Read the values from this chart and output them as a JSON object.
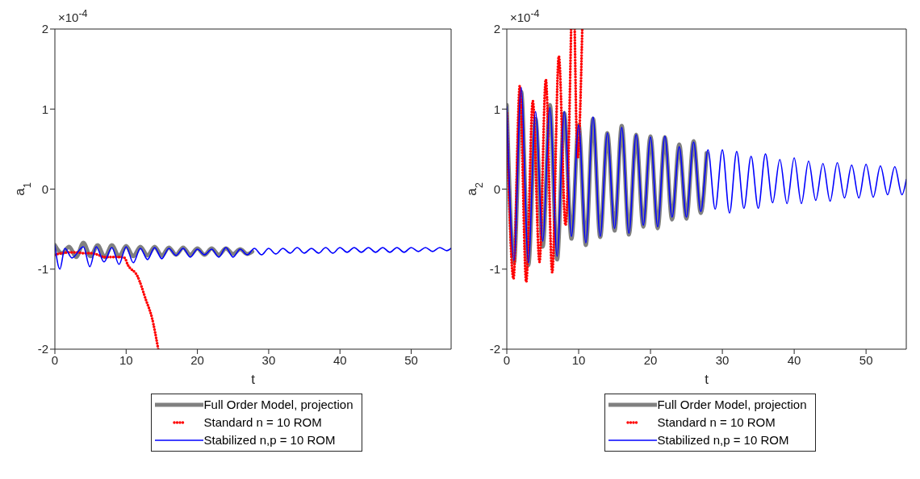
{
  "chart_data": [
    {
      "type": "line",
      "xlabel": "t",
      "ylabel": "a$_{1}$",
      "annotations": [
        "×10$^{-4}$"
      ],
      "xlim": [
        0,
        55.6
      ],
      "ylim": [
        -2,
        2
      ],
      "xticks": [
        0,
        10,
        20,
        30,
        40,
        50
      ],
      "yticks": [
        -2,
        -1,
        0,
        1,
        2
      ],
      "legend": "bottom",
      "series": [
        {
          "name": "Full Order Model, projection",
          "color": "#808080",
          "line_style": "solid",
          "x": [
            0,
            1,
            2,
            3,
            4,
            5,
            6,
            7,
            8,
            9,
            10,
            11,
            12,
            13,
            14,
            15,
            16,
            17,
            18,
            19,
            20,
            21,
            22,
            23,
            24,
            25,
            26,
            27,
            27.7
          ],
          "values": [
            -0.7,
            -0.8,
            -0.72,
            -0.85,
            -0.67,
            -0.84,
            -0.7,
            -0.85,
            -0.7,
            -0.84,
            -0.71,
            -0.84,
            -0.72,
            -0.83,
            -0.72,
            -0.83,
            -0.73,
            -0.82,
            -0.73,
            -0.82,
            -0.74,
            -0.82,
            -0.74,
            -0.82,
            -0.74,
            -0.81,
            -0.75,
            -0.81,
            -0.78
          ]
        },
        {
          "name": "Standard n = 10 ROM",
          "color": "#ff0000",
          "line_style": "dotted",
          "x": [
            0,
            1,
            2,
            3,
            4,
            5,
            6,
            7,
            8,
            9,
            9.8,
            10.2,
            11.6,
            12.8,
            13.6,
            14.5
          ],
          "values": [
            -0.82,
            -0.8,
            -0.79,
            -0.79,
            -0.8,
            -0.8,
            -0.82,
            -0.85,
            -0.85,
            -0.85,
            -0.86,
            -0.94,
            -1.09,
            -1.39,
            -1.6,
            -2.0
          ]
        },
        {
          "name": "Stabilized n,p = 10 ROM",
          "color": "#0000ff",
          "line_style": "solid",
          "x": [
            0,
            0.7,
            1.4,
            2.4,
            4,
            4.9,
            5.8,
            6.9,
            8,
            9,
            10,
            11,
            12,
            13,
            14,
            15,
            16,
            17,
            18,
            19,
            20,
            21,
            22,
            23,
            24,
            25,
            26,
            27,
            28,
            29,
            30,
            31,
            32,
            33,
            34,
            35,
            36,
            37,
            38,
            39,
            40,
            41,
            42,
            43,
            44,
            45,
            46,
            47,
            48,
            49,
            50,
            51,
            52,
            53,
            54,
            55,
            55.6
          ],
          "values": [
            -0.7,
            -1.0,
            -0.74,
            -0.86,
            -0.72,
            -0.97,
            -0.72,
            -0.91,
            -0.73,
            -0.94,
            -0.72,
            -0.92,
            -0.74,
            -0.88,
            -0.73,
            -0.87,
            -0.74,
            -0.83,
            -0.74,
            -0.85,
            -0.75,
            -0.82,
            -0.75,
            -0.85,
            -0.73,
            -0.85,
            -0.75,
            -0.82,
            -0.74,
            -0.82,
            -0.74,
            -0.81,
            -0.74,
            -0.8,
            -0.73,
            -0.8,
            -0.74,
            -0.8,
            -0.73,
            -0.8,
            -0.73,
            -0.79,
            -0.73,
            -0.79,
            -0.73,
            -0.79,
            -0.73,
            -0.79,
            -0.73,
            -0.79,
            -0.73,
            -0.78,
            -0.73,
            -0.78,
            -0.73,
            -0.77,
            -0.74
          ]
        }
      ]
    },
    {
      "type": "line",
      "xlabel": "t",
      "ylabel": "a$_{2}$",
      "annotations": [
        "×10$^{-4}$"
      ],
      "xlim": [
        0,
        55.6
      ],
      "ylim": [
        -2,
        2
      ],
      "xticks": [
        0,
        10,
        20,
        30,
        40,
        50
      ],
      "yticks": [
        -2,
        -1,
        0,
        1,
        2
      ],
      "legend": "bottom",
      "series": [
        {
          "name": "Full Order Model, projection",
          "color": "#808080",
          "line_style": "solid",
          "x": [
            0,
            1,
            2,
            3,
            4,
            5,
            6,
            7,
            8,
            9,
            10,
            11,
            12,
            13,
            14,
            15,
            16,
            17,
            18,
            19,
            20,
            21,
            22,
            23,
            24,
            25,
            26,
            27,
            27.8
          ],
          "values": [
            1.05,
            -0.92,
            1.22,
            -0.95,
            0.88,
            -0.72,
            1.05,
            -0.88,
            0.95,
            -0.62,
            0.8,
            -0.7,
            0.88,
            -0.6,
            0.7,
            -0.52,
            0.79,
            -0.57,
            0.68,
            -0.47,
            0.66,
            -0.49,
            0.65,
            -0.38,
            0.56,
            -0.37,
            0.6,
            -0.3,
            0.45
          ]
        },
        {
          "name": "Standard n = 10 ROM",
          "color": "#ff0000",
          "line_style": "dotted",
          "x": [
            0,
            0.93,
            1.81,
            2.7,
            3.62,
            4.55,
            5.43,
            6.32,
            7.24,
            8.17,
            8.95,
            9.2,
            9.45,
            9.86,
            10.5
          ],
          "values": [
            0.95,
            -1.12,
            1.29,
            -1.16,
            1.1,
            -0.91,
            1.37,
            -1.04,
            1.66,
            -0.45,
            2.0,
            null,
            2.0,
            0.39,
            2.0
          ]
        },
        {
          "name": "Stabilized n,p = 10 ROM",
          "color": "#0000ff",
          "line_style": "solid",
          "x": [
            0,
            1,
            2,
            3,
            4,
            5,
            6,
            7,
            8,
            9,
            10,
            11,
            12,
            13,
            14,
            15,
            16,
            17,
            18,
            19,
            20,
            21,
            22,
            23,
            24,
            25,
            26,
            27,
            28,
            29,
            30,
            31,
            32,
            33,
            34,
            35,
            36,
            37,
            38,
            39,
            40,
            41,
            42,
            43,
            44,
            45,
            46,
            47,
            48,
            49,
            50,
            51,
            52,
            53,
            54,
            55,
            55.6
          ],
          "values": [
            1.03,
            -0.89,
            1.27,
            -0.92,
            0.97,
            -0.65,
            1.02,
            -0.84,
            0.97,
            -0.59,
            0.8,
            -0.67,
            0.9,
            -0.59,
            0.7,
            -0.49,
            0.77,
            -0.55,
            0.68,
            -0.45,
            0.65,
            -0.47,
            0.66,
            -0.35,
            0.53,
            -0.35,
            0.59,
            -0.28,
            0.49,
            -0.25,
            0.49,
            -0.3,
            0.47,
            -0.24,
            0.41,
            -0.24,
            0.44,
            -0.17,
            0.37,
            -0.18,
            0.39,
            -0.18,
            0.35,
            -0.14,
            0.32,
            -0.15,
            0.33,
            -0.11,
            0.3,
            -0.11,
            0.31,
            -0.1,
            0.29,
            -0.07,
            0.28,
            -0.07,
            0.12
          ]
        }
      ]
    }
  ]
}
